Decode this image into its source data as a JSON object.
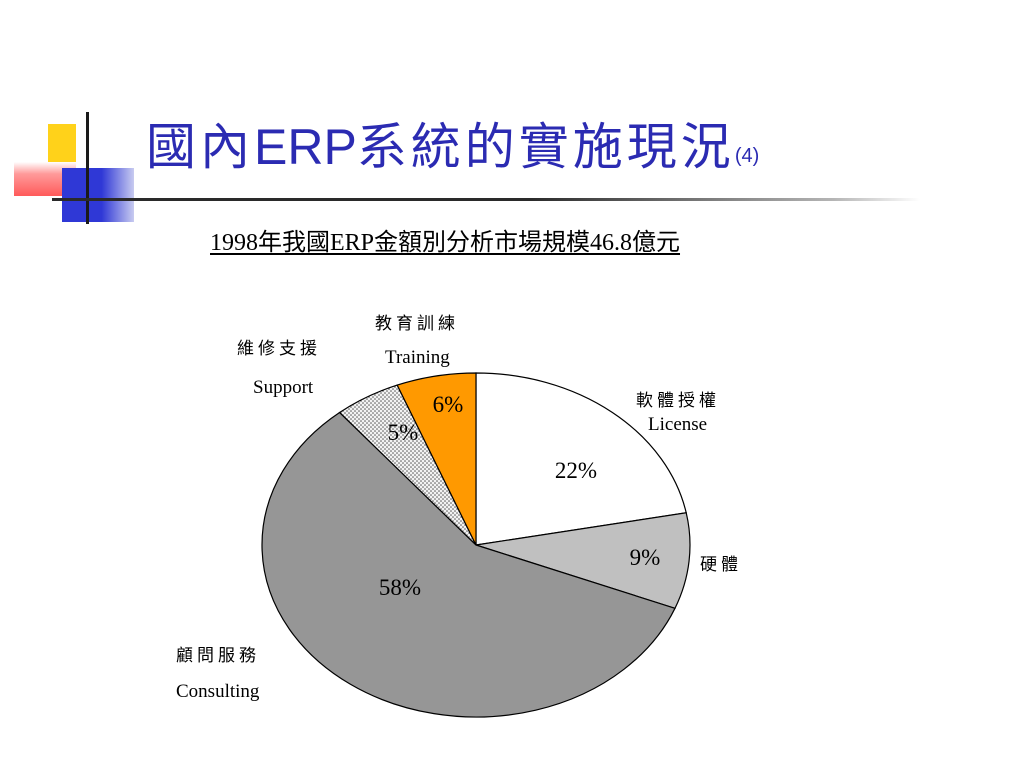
{
  "slide": {
    "title": "國內ERP系統的實施現況",
    "title_parts": {
      "prefix": "國內",
      "latin": "ERP",
      "rest": "系統的實施現況",
      "suffix": "(4)"
    }
  },
  "colors": {
    "title": "#2b2bb2",
    "deco_yellow": "#ffd21a",
    "deco_blue": "#2f38d6",
    "deco_red": "#ff5a5a"
  },
  "chart_data": {
    "type": "pie",
    "title": "1998年我國ERP金額別分析市場規模46.8億元",
    "total": "46.8億元",
    "year": "1998",
    "slices": [
      {
        "label_zh": "軟體授權",
        "label_en": "License",
        "value": 22,
        "display": "22%",
        "color": "#ffffff"
      },
      {
        "label_zh": "硬體",
        "label_en": "",
        "value": 9,
        "display": "9%",
        "color": "#c0c0c0"
      },
      {
        "label_zh": "顧問服務",
        "label_en": "Consulting",
        "value": 58,
        "display": "58%",
        "color": "#969696"
      },
      {
        "label_zh": "維修支援",
        "label_en": "Support",
        "value": 5,
        "display": "5%",
        "color": "#e8e8e8",
        "pattern": "dotted"
      },
      {
        "label_zh": "教育訓練",
        "label_en": "Training",
        "value": 6,
        "display": "6%",
        "color": "#ff9900"
      }
    ],
    "start_angle": "12 o'clock",
    "direction": "clockwise",
    "legend": "none"
  }
}
